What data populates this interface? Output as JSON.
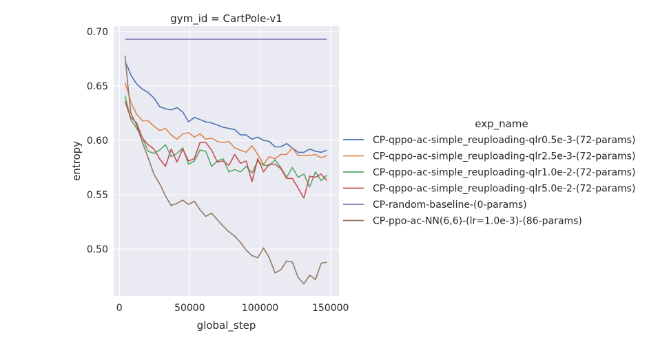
{
  "chart_data": {
    "type": "line",
    "title": "gym_id = CartPole-v1",
    "xlabel": "global_step",
    "ylabel": "entropy",
    "xlim": [
      -4000,
      156000
    ],
    "ylim": [
      0.457,
      0.705
    ],
    "xticks": [
      0,
      50000,
      100000,
      150000
    ],
    "xtick_labels": [
      "0",
      "50000",
      "100000",
      "150000"
    ],
    "yticks": [
      0.5,
      0.55,
      0.6,
      0.65,
      0.7
    ],
    "ytick_labels": [
      "0.50",
      "0.55",
      "0.60",
      "0.65",
      "0.70"
    ],
    "grid": true,
    "legend_title": "exp_name",
    "legend_position": "right",
    "x": [
      4096,
      6144,
      8192,
      12288,
      16384,
      20480,
      24576,
      28672,
      32768,
      36864,
      40960,
      45056,
      49152,
      53248,
      57344,
      61440,
      65536,
      69632,
      73728,
      77824,
      81920,
      86016,
      90112,
      94208,
      98304,
      102400,
      106496,
      110592,
      114688,
      118784,
      122880,
      126976,
      131072,
      135168,
      139264,
      143360,
      147456
    ],
    "series": [
      {
        "name": "CP-qppo-ac-simple_reuploading-qlr0.5e-3-(72-params)",
        "color": "#4c72b0",
        "values": [
          0.672,
          0.667,
          0.66,
          0.652,
          0.647,
          0.644,
          0.639,
          0.631,
          0.629,
          0.628,
          0.63,
          0.626,
          0.617,
          0.621,
          0.619,
          0.617,
          0.616,
          0.614,
          0.612,
          0.611,
          0.61,
          0.605,
          0.605,
          0.601,
          0.603,
          0.6,
          0.599,
          0.594,
          0.594,
          0.597,
          0.593,
          0.589,
          0.589,
          0.592,
          0.59,
          0.589,
          0.591
        ]
      },
      {
        "name": "CP-qppo-ac-simple_reuploading-qlr2.5e-3-(72-params)",
        "color": "#dd8452",
        "values": [
          0.653,
          0.645,
          0.635,
          0.624,
          0.618,
          0.618,
          0.613,
          0.609,
          0.611,
          0.605,
          0.601,
          0.606,
          0.607,
          0.603,
          0.606,
          0.601,
          0.602,
          0.599,
          0.598,
          0.599,
          0.593,
          0.591,
          0.589,
          0.595,
          0.587,
          0.578,
          0.585,
          0.583,
          0.587,
          0.587,
          0.593,
          0.586,
          0.586,
          0.586,
          0.587,
          0.584,
          0.586
        ]
      },
      {
        "name": "CP-qppo-ac-simple_reuploading-qlr1.0e-2-(72-params)",
        "color": "#55a868",
        "values": [
          0.641,
          0.63,
          0.619,
          0.611,
          0.602,
          0.59,
          0.588,
          0.591,
          0.596,
          0.585,
          0.588,
          0.593,
          0.578,
          0.581,
          0.591,
          0.59,
          0.576,
          0.581,
          0.583,
          0.571,
          0.573,
          0.571,
          0.576,
          0.57,
          0.581,
          0.577,
          0.577,
          0.582,
          0.575,
          0.566,
          0.575,
          0.566,
          0.569,
          0.557,
          0.571,
          0.563,
          0.568
        ]
      },
      {
        "name": "CP-qppo-ac-simple_reuploading-qlr5.0e-2-(72-params)",
        "color": "#c44e52",
        "values": [
          0.636,
          0.628,
          0.621,
          0.616,
          0.602,
          0.596,
          0.592,
          0.583,
          0.576,
          0.592,
          0.58,
          0.592,
          0.581,
          0.583,
          0.598,
          0.598,
          0.591,
          0.58,
          0.581,
          0.577,
          0.587,
          0.579,
          0.581,
          0.562,
          0.583,
          0.571,
          0.578,
          0.578,
          0.574,
          0.565,
          0.565,
          0.556,
          0.547,
          0.567,
          0.566,
          0.569,
          0.563
        ]
      },
      {
        "name": "CP-random-baseline-(0-params)",
        "color": "#8172b3",
        "values": [
          0.693,
          0.693,
          0.693,
          0.693,
          0.693,
          0.693,
          0.693,
          0.693,
          0.693,
          0.693,
          0.693,
          0.693,
          0.693,
          0.693,
          0.693,
          0.693,
          0.693,
          0.693,
          0.693,
          0.693,
          0.693,
          0.693,
          0.693,
          0.693,
          0.693,
          0.693,
          0.693,
          0.693,
          0.693,
          0.693,
          0.693,
          0.693,
          0.693,
          0.693,
          0.693,
          0.693,
          0.693
        ]
      },
      {
        "name": "CP-ppo-ac-NN(6,6)-(lr=1.0e-3)-(86-params)",
        "color": "#937860",
        "values": [
          0.678,
          0.65,
          0.625,
          0.614,
          0.598,
          0.584,
          0.569,
          0.56,
          0.549,
          0.54,
          0.542,
          0.545,
          0.541,
          0.544,
          0.536,
          0.53,
          0.533,
          0.527,
          0.521,
          0.516,
          0.512,
          0.506,
          0.499,
          0.494,
          0.492,
          0.501,
          0.492,
          0.478,
          0.481,
          0.489,
          0.488,
          0.474,
          0.468,
          0.476,
          0.472,
          0.487,
          0.488
        ]
      }
    ]
  }
}
